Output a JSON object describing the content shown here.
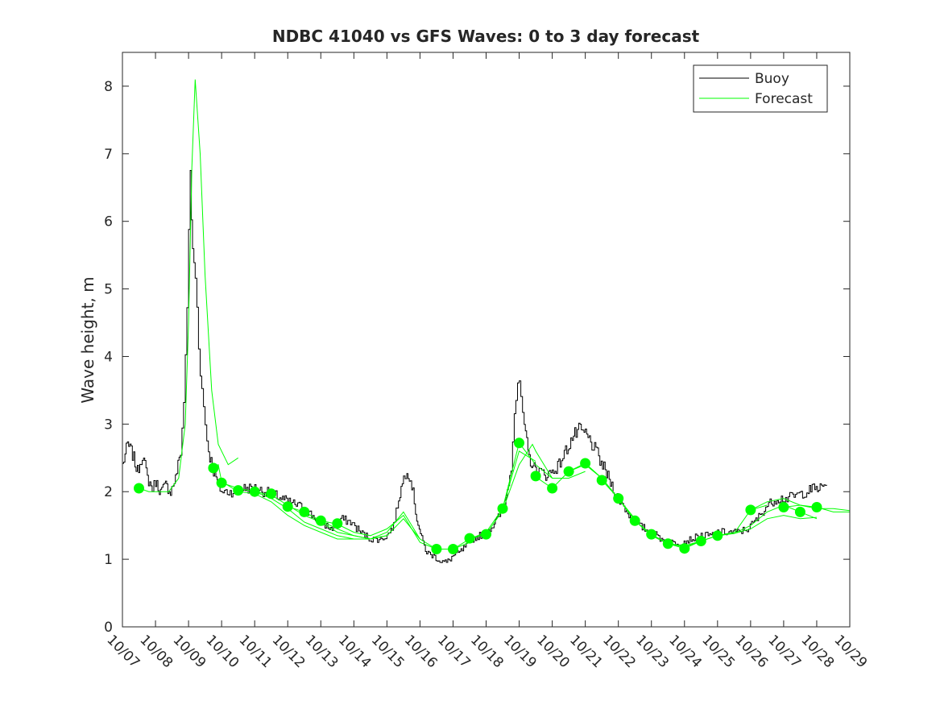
{
  "chart_data": {
    "type": "line",
    "title": "NDBC 41040 vs GFS Waves: 0 to 3 day forecast",
    "xlabel": "",
    "ylabel": "Wave height, m",
    "xlim": [
      0,
      22
    ],
    "ylim": [
      0,
      8.5
    ],
    "x_tick_labels": [
      "10/07",
      "10/08",
      "10/09",
      "10/10",
      "10/11",
      "10/12",
      "10/13",
      "10/14",
      "10/15",
      "10/16",
      "10/17",
      "10/18",
      "10/19",
      "10/20",
      "10/21",
      "10/22",
      "10/23",
      "10/24",
      "10/25",
      "10/26",
      "10/27",
      "10/28",
      "10/29"
    ],
    "y_ticks": [
      0,
      1,
      2,
      3,
      4,
      5,
      6,
      7,
      8
    ],
    "x_units": "days since 10/07 00:00",
    "legend": {
      "position": "top-right",
      "entries": [
        "Buoy",
        "Forecast"
      ]
    },
    "colors": {
      "buoy": "#000000",
      "forecast": "#00ff00"
    },
    "buoy_anchors": [
      [
        0.0,
        2.4
      ],
      [
        0.15,
        2.7
      ],
      [
        0.3,
        2.55
      ],
      [
        0.45,
        2.3
      ],
      [
        0.6,
        2.55
      ],
      [
        0.75,
        2.2
      ],
      [
        0.9,
        2.05
      ],
      [
        1.0,
        2.15
      ],
      [
        1.15,
        2.0
      ],
      [
        1.3,
        2.1
      ],
      [
        1.45,
        2.0
      ],
      [
        1.6,
        2.2
      ],
      [
        1.75,
        2.6
      ],
      [
        1.85,
        3.3
      ],
      [
        1.95,
        4.8
      ],
      [
        2.05,
        6.7
      ],
      [
        2.12,
        5.5
      ],
      [
        2.2,
        5.2
      ],
      [
        2.3,
        4.2
      ],
      [
        2.4,
        3.5
      ],
      [
        2.5,
        3.0
      ],
      [
        2.6,
        2.6
      ],
      [
        2.75,
        2.3
      ],
      [
        2.9,
        2.1
      ],
      [
        3.0,
        2.0
      ],
      [
        3.3,
        2.0
      ],
      [
        3.6,
        2.05
      ],
      [
        4.0,
        2.05
      ],
      [
        4.3,
        2.0
      ],
      [
        4.6,
        1.95
      ],
      [
        5.0,
        1.85
      ],
      [
        5.3,
        1.8
      ],
      [
        5.6,
        1.7
      ],
      [
        6.0,
        1.55
      ],
      [
        6.3,
        1.45
      ],
      [
        6.6,
        1.6
      ],
      [
        6.9,
        1.55
      ],
      [
        7.2,
        1.4
      ],
      [
        7.5,
        1.3
      ],
      [
        7.8,
        1.3
      ],
      [
        8.0,
        1.35
      ],
      [
        8.2,
        1.5
      ],
      [
        8.35,
        1.9
      ],
      [
        8.5,
        2.2
      ],
      [
        8.6,
        2.35
      ],
      [
        8.75,
        2.1
      ],
      [
        8.9,
        1.6
      ],
      [
        9.05,
        1.3
      ],
      [
        9.2,
        1.1
      ],
      [
        9.4,
        1.05
      ],
      [
        9.6,
        0.98
      ],
      [
        9.8,
        0.95
      ],
      [
        10.0,
        1.05
      ],
      [
        10.2,
        1.1
      ],
      [
        10.4,
        1.2
      ],
      [
        10.6,
        1.3
      ],
      [
        10.8,
        1.35
      ],
      [
        11.0,
        1.4
      ],
      [
        11.2,
        1.5
      ],
      [
        11.4,
        1.65
      ],
      [
        11.6,
        1.9
      ],
      [
        11.75,
        2.4
      ],
      [
        11.85,
        3.2
      ],
      [
        11.95,
        3.6
      ],
      [
        12.05,
        3.4
      ],
      [
        12.15,
        2.9
      ],
      [
        12.3,
        2.5
      ],
      [
        12.45,
        2.35
      ],
      [
        12.6,
        2.3
      ],
      [
        12.8,
        2.25
      ],
      [
        13.0,
        2.3
      ],
      [
        13.2,
        2.4
      ],
      [
        13.4,
        2.6
      ],
      [
        13.6,
        2.8
      ],
      [
        13.8,
        2.9
      ],
      [
        14.0,
        2.85
      ],
      [
        14.2,
        2.7
      ],
      [
        14.4,
        2.5
      ],
      [
        14.6,
        2.3
      ],
      [
        14.8,
        2.1
      ],
      [
        15.0,
        1.9
      ],
      [
        15.2,
        1.75
      ],
      [
        15.4,
        1.6
      ],
      [
        15.6,
        1.5
      ],
      [
        15.8,
        1.45
      ],
      [
        16.0,
        1.4
      ],
      [
        16.3,
        1.3
      ],
      [
        16.6,
        1.25
      ],
      [
        16.9,
        1.25
      ],
      [
        17.2,
        1.3
      ],
      [
        17.5,
        1.35
      ],
      [
        17.8,
        1.35
      ],
      [
        18.0,
        1.4
      ],
      [
        18.3,
        1.4
      ],
      [
        18.6,
        1.4
      ],
      [
        18.9,
        1.45
      ],
      [
        19.2,
        1.6
      ],
      [
        19.5,
        1.8
      ],
      [
        19.8,
        1.9
      ],
      [
        20.1,
        1.9
      ],
      [
        20.4,
        1.95
      ],
      [
        20.7,
        2.0
      ],
      [
        20.9,
        2.05
      ],
      [
        21.1,
        2.05
      ],
      [
        21.3,
        2.1
      ]
    ],
    "forecast_runs": [
      [
        [
          0.5,
          2.05
        ],
        [
          0.8,
          2.0
        ],
        [
          1.1,
          2.0
        ],
        [
          1.4,
          2.0
        ],
        [
          1.7,
          2.2
        ],
        [
          1.9,
          3.0
        ],
        [
          2.0,
          4.5
        ],
        [
          2.1,
          6.8
        ],
        [
          2.2,
          8.1
        ],
        [
          2.35,
          7.0
        ],
        [
          2.5,
          5.2
        ],
        [
          2.7,
          3.5
        ],
        [
          2.9,
          2.7
        ],
        [
          3.2,
          2.4
        ],
        [
          3.5,
          2.5
        ]
      ],
      [
        [
          2.75,
          2.35
        ],
        [
          2.9,
          2.4
        ],
        [
          3.0,
          2.15
        ],
        [
          3.5,
          2.0
        ],
        [
          4.0,
          1.97
        ],
        [
          4.5,
          1.85
        ],
        [
          5.0,
          1.65
        ],
        [
          5.5,
          1.5
        ],
        [
          6.0,
          1.4
        ],
        [
          6.5,
          1.3
        ],
        [
          7.0,
          1.3
        ],
        [
          7.5,
          1.3
        ]
      ],
      [
        [
          3.0,
          2.13
        ],
        [
          3.5,
          2.05
        ],
        [
          4.0,
          2.0
        ],
        [
          4.5,
          1.9
        ],
        [
          5.0,
          1.75
        ],
        [
          5.5,
          1.55
        ],
        [
          6.0,
          1.45
        ],
        [
          6.5,
          1.35
        ],
        [
          7.0,
          1.3
        ],
        [
          7.5,
          1.3
        ],
        [
          8.0,
          1.35
        ]
      ],
      [
        [
          4.0,
          2.0
        ],
        [
          4.5,
          1.95
        ],
        [
          5.0,
          1.8
        ],
        [
          5.5,
          1.65
        ],
        [
          6.0,
          1.55
        ],
        [
          6.5,
          1.4
        ],
        [
          7.0,
          1.35
        ],
        [
          7.5,
          1.3
        ],
        [
          8.0,
          1.35
        ],
        [
          8.5,
          1.6
        ],
        [
          9.0,
          1.3
        ]
      ],
      [
        [
          5.0,
          1.78
        ],
        [
          5.5,
          1.7
        ],
        [
          6.0,
          1.57
        ],
        [
          6.5,
          1.45
        ],
        [
          7.0,
          1.35
        ],
        [
          7.5,
          1.3
        ],
        [
          8.0,
          1.4
        ],
        [
          8.5,
          1.7
        ],
        [
          9.0,
          1.3
        ],
        [
          9.5,
          1.15
        ]
      ],
      [
        [
          6.0,
          1.57
        ],
        [
          6.5,
          1.52
        ],
        [
          7.0,
          1.4
        ],
        [
          7.5,
          1.35
        ],
        [
          8.0,
          1.45
        ],
        [
          8.5,
          1.65
        ],
        [
          9.0,
          1.25
        ],
        [
          9.5,
          1.15
        ],
        [
          10.0,
          1.15
        ],
        [
          10.5,
          1.25
        ]
      ],
      [
        [
          9.5,
          1.15
        ],
        [
          10.0,
          1.15
        ],
        [
          10.5,
          1.3
        ],
        [
          11.0,
          1.4
        ],
        [
          11.5,
          1.75
        ],
        [
          12.0,
          2.6
        ],
        [
          12.5,
          2.45
        ]
      ],
      [
        [
          10.5,
          1.3
        ],
        [
          11.0,
          1.37
        ],
        [
          11.5,
          1.72
        ],
        [
          12.0,
          2.4
        ],
        [
          12.4,
          2.7
        ],
        [
          12.5,
          2.6
        ],
        [
          13.0,
          2.2
        ]
      ],
      [
        [
          11.5,
          1.75
        ],
        [
          12.0,
          2.72
        ],
        [
          12.5,
          2.4
        ],
        [
          13.0,
          2.2
        ],
        [
          13.5,
          2.2
        ],
        [
          14.0,
          2.3
        ]
      ],
      [
        [
          12.5,
          2.22
        ],
        [
          13.0,
          2.05
        ],
        [
          13.5,
          2.3
        ],
        [
          14.0,
          2.4
        ],
        [
          14.5,
          2.2
        ],
        [
          15.0,
          1.9
        ],
        [
          15.5,
          1.6
        ]
      ],
      [
        [
          13.5,
          2.3
        ],
        [
          14.0,
          2.42
        ],
        [
          14.5,
          2.2
        ],
        [
          15.0,
          1.9
        ],
        [
          15.5,
          1.57
        ],
        [
          16.0,
          1.35
        ],
        [
          16.5,
          1.23
        ]
      ],
      [
        [
          14.5,
          2.17
        ],
        [
          15.0,
          1.9
        ],
        [
          15.5,
          1.57
        ],
        [
          16.0,
          1.37
        ],
        [
          16.5,
          1.23
        ],
        [
          17.0,
          1.2
        ],
        [
          17.5,
          1.27
        ]
      ],
      [
        [
          15.5,
          1.57
        ],
        [
          16.0,
          1.37
        ],
        [
          16.5,
          1.23
        ],
        [
          17.0,
          1.18
        ],
        [
          17.5,
          1.27
        ],
        [
          18.0,
          1.35
        ],
        [
          18.5,
          1.4
        ]
      ],
      [
        [
          16.5,
          1.23
        ],
        [
          17.0,
          1.16
        ],
        [
          17.5,
          1.27
        ],
        [
          18.0,
          1.35
        ],
        [
          18.5,
          1.38
        ],
        [
          19.0,
          1.73
        ],
        [
          19.5,
          1.8
        ]
      ],
      [
        [
          18.0,
          1.35
        ],
        [
          18.5,
          1.38
        ],
        [
          19.0,
          1.5
        ],
        [
          19.5,
          1.7
        ],
        [
          20.0,
          1.8
        ],
        [
          20.5,
          1.7
        ],
        [
          21.0,
          1.6
        ]
      ],
      [
        [
          18.5,
          1.38
        ],
        [
          19.0,
          1.45
        ],
        [
          19.5,
          1.6
        ],
        [
          20.0,
          1.65
        ],
        [
          20.5,
          1.6
        ],
        [
          21.0,
          1.62
        ]
      ],
      [
        [
          19.0,
          1.73
        ],
        [
          19.5,
          1.85
        ],
        [
          20.0,
          1.9
        ],
        [
          20.5,
          1.8
        ],
        [
          21.0,
          1.75
        ],
        [
          21.5,
          1.75
        ],
        [
          22.0,
          1.72
        ]
      ],
      [
        [
          20.0,
          1.77
        ],
        [
          20.5,
          1.8
        ],
        [
          21.0,
          1.77
        ],
        [
          21.5,
          1.7
        ],
        [
          22.0,
          1.7
        ]
      ]
    ],
    "forecast_points": [
      [
        0.5,
        2.05
      ],
      [
        2.75,
        2.35
      ],
      [
        3.0,
        2.13
      ],
      [
        3.5,
        2.02
      ],
      [
        4.0,
        2.0
      ],
      [
        4.5,
        1.97
      ],
      [
        5.0,
        1.78
      ],
      [
        5.5,
        1.7
      ],
      [
        6.0,
        1.57
      ],
      [
        6.5,
        1.53
      ],
      [
        9.5,
        1.15
      ],
      [
        10.0,
        1.15
      ],
      [
        10.5,
        1.31
      ],
      [
        11.0,
        1.37
      ],
      [
        11.5,
        1.75
      ],
      [
        12.0,
        2.72
      ],
      [
        12.5,
        2.23
      ],
      [
        13.0,
        2.05
      ],
      [
        13.5,
        2.3
      ],
      [
        14.0,
        2.42
      ],
      [
        14.5,
        2.17
      ],
      [
        15.0,
        1.9
      ],
      [
        15.5,
        1.57
      ],
      [
        16.0,
        1.37
      ],
      [
        16.5,
        1.23
      ],
      [
        17.0,
        1.16
      ],
      [
        17.5,
        1.27
      ],
      [
        18.0,
        1.35
      ],
      [
        19.0,
        1.73
      ],
      [
        20.0,
        1.77
      ],
      [
        20.5,
        1.7
      ],
      [
        21.0,
        1.77
      ]
    ]
  }
}
